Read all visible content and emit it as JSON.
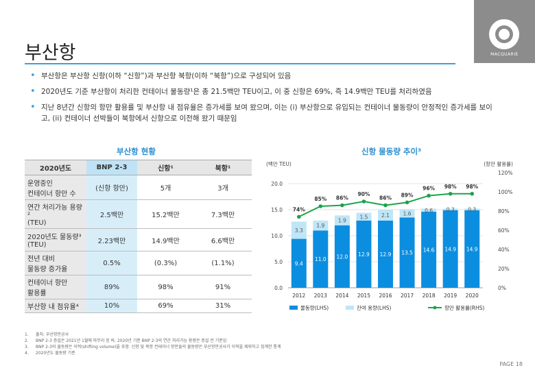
{
  "title": "부산항",
  "logo": {
    "text": "MACQUARIE"
  },
  "bullets": [
    "부산항은 부산항 신항(이하 “신항”)과 부산항 북항(이하 “북항”)으로 구성되어 있음",
    "2020년도 기준 부산항이 처리한 컨테이너 물동량¹은 총 21.5백만 TEU이고, 이 중 신항은 69%, 즉 14.9백만 TEU를 처리하였음",
    "지난 8년간 신항의 항만 활용률 및 부산항 내 점유율은 증가세를 보여 왔으며, 이는 (i) 부산항으로 유입되는 컨테이너 물동량이 안정적인 증가세를 보이고, (ii) 컨테이너 선박들이 북항에서 신항으로 이전해 왔기 때문임"
  ],
  "table": {
    "section_title": "부산항 현황",
    "headers": [
      "2020년도",
      "BNP 2-3",
      "신항¹",
      "북항¹"
    ],
    "rows": [
      [
        "운영중인\n컨테이너 항만 수",
        "(신항 항만)",
        "5개",
        "3개"
      ],
      [
        "연간 처리가능 용량²\n(TEU)",
        "2.5백만",
        "15.2백만",
        "7.3백만"
      ],
      [
        "2020년도 물동량³\n(TEU)",
        "2.23백만",
        "14.9백만",
        "6.6백만"
      ],
      [
        "전년 대비\n물동량 증가율",
        "0.5%",
        "(0.3%)",
        "(1.1%)"
      ],
      [
        "컨테이너 항만\n활용률",
        "89%",
        "98%",
        "91%"
      ],
      [
        "부산항 내 점유율⁴",
        "10%",
        "69%",
        "31%"
      ]
    ]
  },
  "chart_section_title": "신항 물동량 추이³",
  "chart_data": {
    "type": "bar",
    "categories": [
      "2012",
      "2013",
      "2014",
      "2015",
      "2016",
      "2017",
      "2018",
      "2019",
      "2020"
    ],
    "series": [
      {
        "name": "물동량(LHS)",
        "type": "bar",
        "axis": "left",
        "stack": "main",
        "color": "#0c8ee0",
        "values": [
          9.4,
          11.0,
          12.0,
          12.9,
          12.9,
          13.5,
          14.6,
          14.9,
          14.9
        ],
        "labels": [
          "9.4",
          "11.0",
          "12.0",
          "12.9",
          "12.9",
          "13.5",
          "14.6",
          "14.9",
          "14.9"
        ]
      },
      {
        "name": "잔여 용량(LHS)",
        "type": "bar",
        "axis": "left",
        "stack": "main",
        "color": "#bfe6f7",
        "values": [
          3.3,
          1.9,
          1.9,
          1.5,
          2.1,
          1.6,
          0.6,
          0.3,
          0.3
        ],
        "labels": [
          "3.3",
          "1.9",
          "1.9",
          "1.5",
          "2.1",
          "1.6",
          "0.6",
          "0.3",
          "0.3"
        ]
      },
      {
        "name": "항만 활용률(RHS)",
        "type": "line",
        "axis": "right",
        "color": "#1aa34a",
        "values": [
          74,
          85,
          86,
          90,
          86,
          89,
          96,
          98,
          98
        ],
        "labels": [
          "74%",
          "85%",
          "86%",
          "90%",
          "86%",
          "89%",
          "96%",
          "98%",
          "98%"
        ]
      }
    ],
    "left_axis": {
      "label": "(백만 TEU)",
      "ylim": [
        0,
        20
      ],
      "ticks": [
        "0.0",
        "5.0",
        "10.0",
        "15.0",
        "20.0"
      ]
    },
    "right_axis": {
      "label": "(항만 활용률)",
      "ylim": [
        0,
        120
      ],
      "ticks": [
        "0%",
        "20%",
        "40%",
        "60%",
        "80%",
        "100%",
        "120%"
      ]
    },
    "grid": true,
    "legend_position": "bottom"
  },
  "footnotes": [
    {
      "n": "1.",
      "text": "출처: 부산항만공사"
    },
    {
      "n": "2.",
      "text": "BNP 2-3 증설은 2021년 1월에 마무리 된 바, 2020년 기준 BNP 2-3의 연간 처리가능 용량은 증설 전 기준임"
    },
    {
      "n": "3.",
      "text": "BNP 2-3의 물동량은 이적(shifting volume)을 포함. 신항 및 북항 컨테이너 항만들의 물동량은 부산항만공사가 이적을 제외하고 집계한 통계"
    },
    {
      "n": "4.",
      "text": "2020년도 물동량 기준"
    }
  ],
  "page": "PAGE 18"
}
